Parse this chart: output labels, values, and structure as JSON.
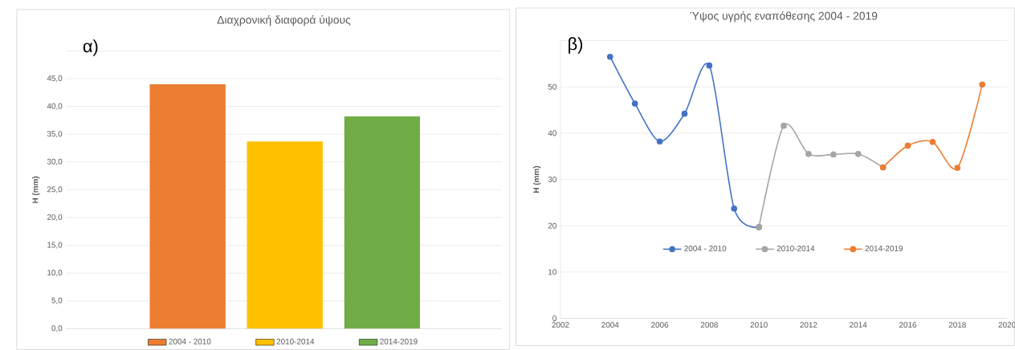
{
  "chart_data": [
    {
      "type": "bar",
      "title": "Διαχρονική διαφορά ύψους",
      "ylabel": "H (mm)",
      "annotations": [
        "α)"
      ],
      "categories": [
        null,
        null,
        null
      ],
      "series": [
        {
          "name": "2004 - 2010",
          "color": "#ed7d31",
          "values": [
            44.0,
            null,
            null
          ]
        },
        {
          "name": "2010-2014",
          "color": "#ffc000",
          "values": [
            null,
            33.7,
            null
          ]
        },
        {
          "name": "2014-2019",
          "color": "#70ad47",
          "values": [
            null,
            null,
            38.2
          ]
        }
      ],
      "ylim": [
        0,
        50
      ],
      "yticks": [
        {
          "value": 0,
          "label": "0,0"
        },
        {
          "value": 5,
          "label": "5,0"
        },
        {
          "value": 10,
          "label": "10,0"
        },
        {
          "value": 15,
          "label": "15,0"
        },
        {
          "value": 20,
          "label": "20,0"
        },
        {
          "value": 25,
          "label": "25,0"
        },
        {
          "value": 30,
          "label": "30,0"
        },
        {
          "value": 35,
          "label": "35,0"
        },
        {
          "value": 40,
          "label": "40,0"
        },
        {
          "value": 45,
          "label": "45,0"
        },
        {
          "value": 50,
          "label": null
        }
      ],
      "grid": "y",
      "legend": "bottom"
    },
    {
      "type": "line",
      "title": "Ύψος υγρής εναπόθεσης 2004 - 2019",
      "ylabel": "H (mm)",
      "annotations": [
        "β)"
      ],
      "series": [
        {
          "name": "2004 - 2010",
          "color": "#4472c4",
          "x": [
            2004,
            2005,
            2006,
            2007,
            2008,
            2009,
            2010
          ],
          "values": [
            56.5,
            46.4,
            38.2,
            44.2,
            54.6,
            23.7,
            19.7
          ]
        },
        {
          "name": "2010-2014",
          "color": "#a5a5a5",
          "x": [
            2010,
            2011,
            2012,
            2013,
            2014,
            2015
          ],
          "values": [
            19.7,
            41.6,
            35.5,
            35.4,
            35.5,
            32.6
          ]
        },
        {
          "name": "2014-2019",
          "color": "#ed7d31",
          "x": [
            2015,
            2016,
            2017,
            2018,
            2019
          ],
          "values": [
            32.6,
            37.3,
            38.1,
            32.5,
            50.5
          ]
        }
      ],
      "xlim": [
        2002,
        2020
      ],
      "xticks": [
        2002,
        2004,
        2006,
        2008,
        2010,
        2012,
        2014,
        2016,
        2018,
        2020
      ],
      "ylim": [
        0,
        60
      ],
      "yticks": [
        0,
        10,
        20,
        30,
        40,
        50,
        {
          "value": 60,
          "label": null
        }
      ],
      "grid": "y",
      "legend": "bottom",
      "marker": "circle",
      "line_style": "solid"
    }
  ]
}
